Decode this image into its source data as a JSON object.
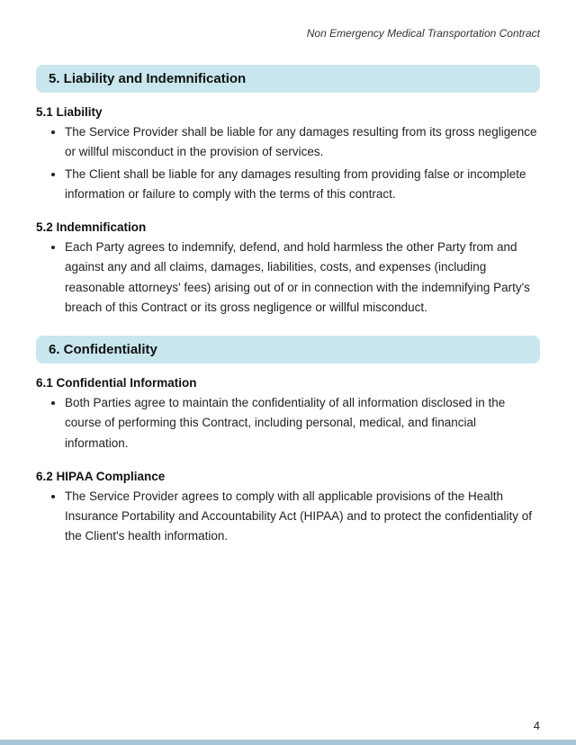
{
  "header": {
    "title": "Non Emergency Medical Transportation Contract"
  },
  "sections": [
    {
      "heading": "5. Liability and Indemnification",
      "subsections": [
        {
          "title": "5.1 Liability",
          "bullets": [
            "The Service Provider shall be liable for any damages resulting from its gross negligence or willful misconduct in the provision of services.",
            "The Client shall be liable for any damages resulting from providing false or incomplete information or failure to comply with the terms of this contract."
          ]
        },
        {
          "title": "5.2 Indemnification",
          "bullets": [
            "Each Party agrees to indemnify, defend, and hold harmless the other Party from and against any and all claims, damages, liabilities, costs, and expenses (including reasonable attorneys' fees) arising out of or in connection with the indemnifying Party's breach of this Contract or its gross negligence or willful misconduct."
          ]
        }
      ]
    },
    {
      "heading": "6. Confidentiality",
      "subsections": [
        {
          "title": "6.1 Confidential Information",
          "bullets": [
            "Both Parties agree to maintain the confidentiality of all information disclosed in the course of performing this Contract, including personal, medical, and financial information."
          ]
        },
        {
          "title": "6.2 HIPAA Compliance",
          "bullets": [
            "The Service Provider agrees to comply with all applicable provisions of the Health Insurance Portability and Accountability Act (HIPAA) and to protect the confidentiality of the Client's health information."
          ]
        }
      ]
    }
  ],
  "pageNumber": "4",
  "colors": {
    "heading_bg": "#c8e6ed",
    "footer_bar": "#a7c4d4",
    "page_bg": "#ffffff",
    "text": "#1a1a1a"
  },
  "typography": {
    "header_fontsize": 12,
    "heading_fontsize": 15,
    "subtitle_fontsize": 13.5,
    "body_fontsize": 13.5,
    "line_height": 1.65
  }
}
